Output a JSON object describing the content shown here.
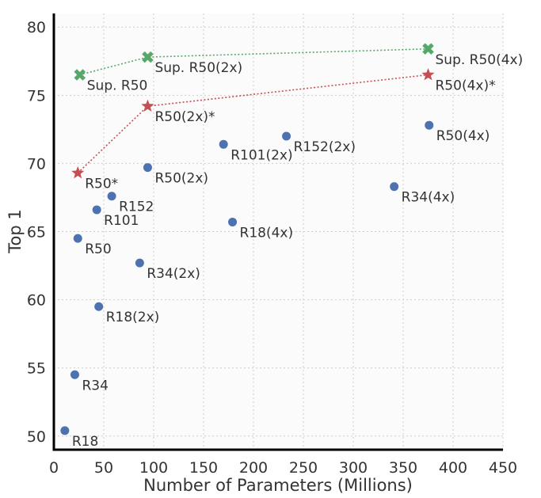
{
  "chart_data": {
    "type": "scatter",
    "xlabel": "Number of Parameters (Millions)",
    "ylabel": "Top 1",
    "xlim": [
      0,
      450
    ],
    "ylim": [
      49,
      81
    ],
    "xticks": [
      "0",
      "50",
      "100",
      "150",
      "200",
      "250",
      "300",
      "350",
      "400",
      "450"
    ],
    "yticks": [
      "50",
      "55",
      "60",
      "65",
      "70",
      "75",
      "80"
    ],
    "grid": true,
    "colors": {
      "baseline": "#4c72b0",
      "simclr": "#c44e52",
      "supervised": "#55a868"
    },
    "series": [
      {
        "kind": "baseline",
        "marker": "circle",
        "points": [
          {
            "label": "R18",
            "x": 11,
            "y": 50.4
          },
          {
            "label": "R34",
            "x": 21,
            "y": 54.5
          },
          {
            "label": "R50",
            "x": 24,
            "y": 64.5
          },
          {
            "label": "R101",
            "x": 43,
            "y": 66.6
          },
          {
            "label": "R152",
            "x": 58,
            "y": 67.6
          },
          {
            "label": "R18(2x)",
            "x": 45,
            "y": 59.5
          },
          {
            "label": "R34(2x)",
            "x": 86,
            "y": 62.7
          },
          {
            "label": "R50(2x)",
            "x": 94,
            "y": 69.7
          },
          {
            "label": "R101(2x)",
            "x": 170,
            "y": 71.4
          },
          {
            "label": "R152(2x)",
            "x": 233,
            "y": 72.0
          },
          {
            "label": "R18(4x)",
            "x": 179,
            "y": 65.7
          },
          {
            "label": "R34(4x)",
            "x": 341,
            "y": 68.3
          },
          {
            "label": "R50(4x)",
            "x": 376,
            "y": 72.8
          }
        ]
      },
      {
        "kind": "simclr",
        "marker": "star",
        "connected": true,
        "points": [
          {
            "label": "R50*",
            "x": 24,
            "y": 69.3
          },
          {
            "label": "R50(2x)*",
            "x": 94,
            "y": 74.2
          },
          {
            "label": "R50(4x)*",
            "x": 375,
            "y": 76.5
          }
        ]
      },
      {
        "kind": "supervised",
        "marker": "x",
        "connected": true,
        "points": [
          {
            "label": "Sup. R50",
            "x": 26,
            "y": 76.5
          },
          {
            "label": "Sup. R50(2x)",
            "x": 94,
            "y": 77.8
          },
          {
            "label": "Sup. R50(4x)",
            "x": 375,
            "y": 78.4
          }
        ]
      }
    ]
  }
}
